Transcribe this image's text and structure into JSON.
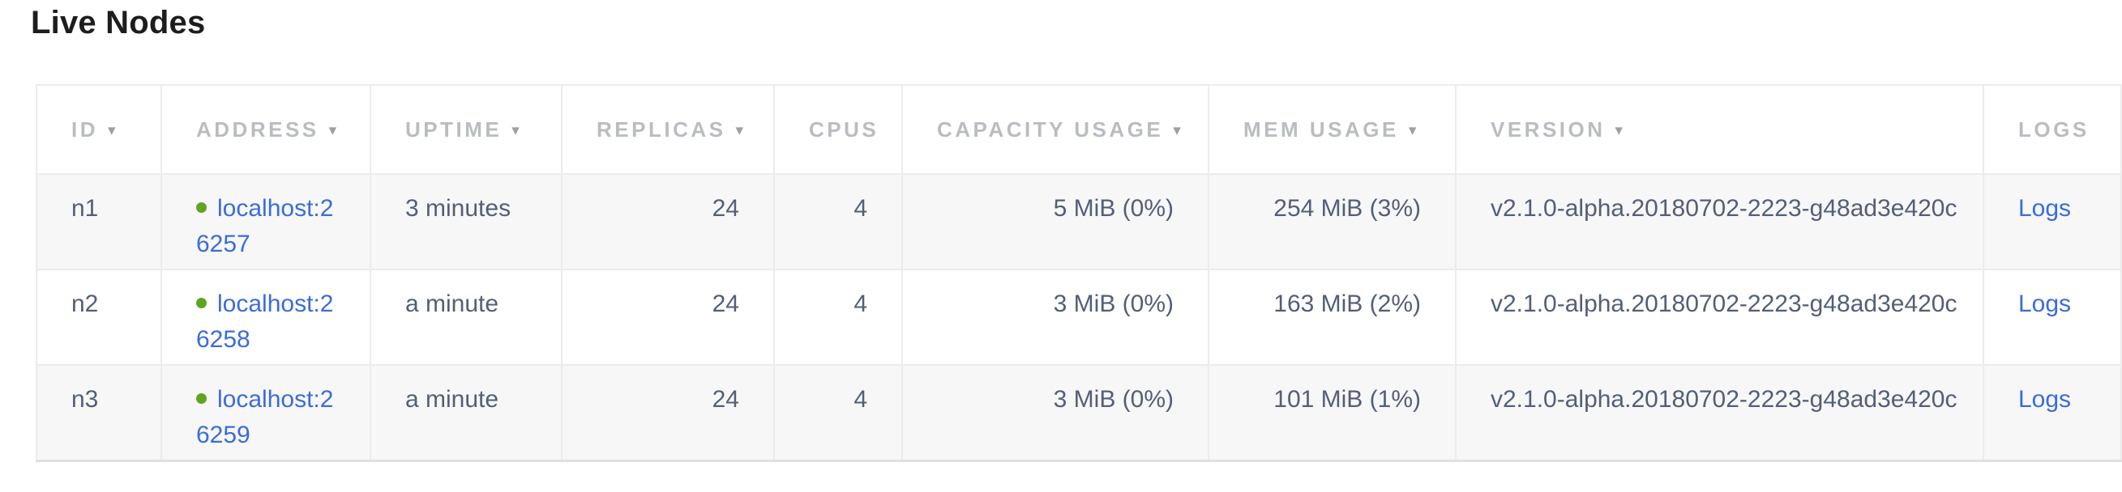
{
  "page": {
    "title": "Live Nodes"
  },
  "table": {
    "sort_arrow": "▾",
    "columns": [
      {
        "key": "id",
        "label": "ID",
        "sortable": true,
        "align": "left"
      },
      {
        "key": "address",
        "label": "ADDRESS",
        "sortable": true,
        "align": "left"
      },
      {
        "key": "uptime",
        "label": "UPTIME",
        "sortable": true,
        "align": "left"
      },
      {
        "key": "replicas",
        "label": "REPLICAS",
        "sortable": true,
        "align": "right"
      },
      {
        "key": "cpus",
        "label": "CPUS",
        "sortable": false,
        "align": "right"
      },
      {
        "key": "capacity_usage",
        "label": "CAPACITY USAGE",
        "sortable": true,
        "align": "right"
      },
      {
        "key": "mem_usage",
        "label": "MEM USAGE",
        "sortable": true,
        "align": "right"
      },
      {
        "key": "version",
        "label": "VERSION",
        "sortable": true,
        "align": "left"
      },
      {
        "key": "logs",
        "label": "LOGS",
        "sortable": false,
        "align": "left"
      }
    ],
    "rows": [
      {
        "id": "n1",
        "status": "live",
        "address": "localhost:26257",
        "uptime": "3 minutes",
        "replicas": "24",
        "cpus": "4",
        "capacity_usage": "5 MiB (0%)",
        "mem_usage": "254 MiB (3%)",
        "version": "v2.1.0-alpha.20180702-2223-g48ad3e420c",
        "logs": "Logs"
      },
      {
        "id": "n2",
        "status": "live",
        "address": "localhost:26258",
        "uptime": "a minute",
        "replicas": "24",
        "cpus": "4",
        "capacity_usage": "3 MiB (0%)",
        "mem_usage": "163 MiB (2%)",
        "version": "v2.1.0-alpha.20180702-2223-g48ad3e420c",
        "logs": "Logs"
      },
      {
        "id": "n3",
        "status": "live",
        "address": "localhost:26259",
        "uptime": "a minute",
        "replicas": "24",
        "cpus": "4",
        "capacity_usage": "3 MiB (0%)",
        "mem_usage": "101 MiB (1%)",
        "version": "v2.1.0-alpha.20180702-2223-g48ad3e420c",
        "logs": "Logs"
      }
    ],
    "colors": {
      "link_blue": "#3b6cd9",
      "live_status_green": "#61a41f",
      "header_gray": "#b9bdc2",
      "body_slate": "#535f78"
    }
  }
}
